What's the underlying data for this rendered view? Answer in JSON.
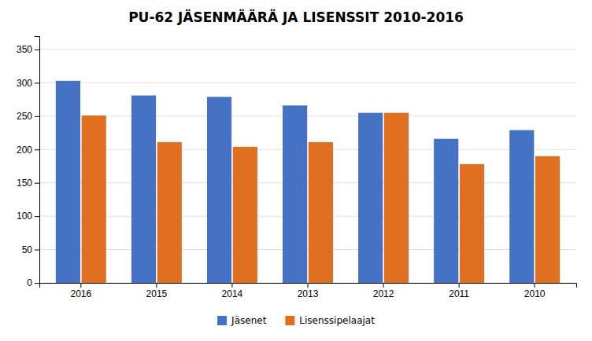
{
  "chart_data": {
    "type": "bar",
    "title": "PU-62 JÄSENMÄÄRÄ JA LISENSSIT 2010-2016",
    "categories": [
      "2016",
      "2015",
      "2014",
      "2013",
      "2012",
      "2011",
      "2010"
    ],
    "series": [
      {
        "name": "Jäsenet",
        "color": "#4472C4",
        "values": [
          303,
          281,
          279,
          266,
          255,
          216,
          229
        ]
      },
      {
        "name": "Lisenssipelaajat",
        "color": "#E07020",
        "values": [
          251,
          211,
          204,
          211,
          255,
          178,
          190
        ]
      }
    ],
    "ylim": [
      0,
      370
    ],
    "yticks": [
      0,
      50,
      100,
      150,
      200,
      250,
      300,
      350
    ],
    "grid": true,
    "legend": "bottom"
  }
}
